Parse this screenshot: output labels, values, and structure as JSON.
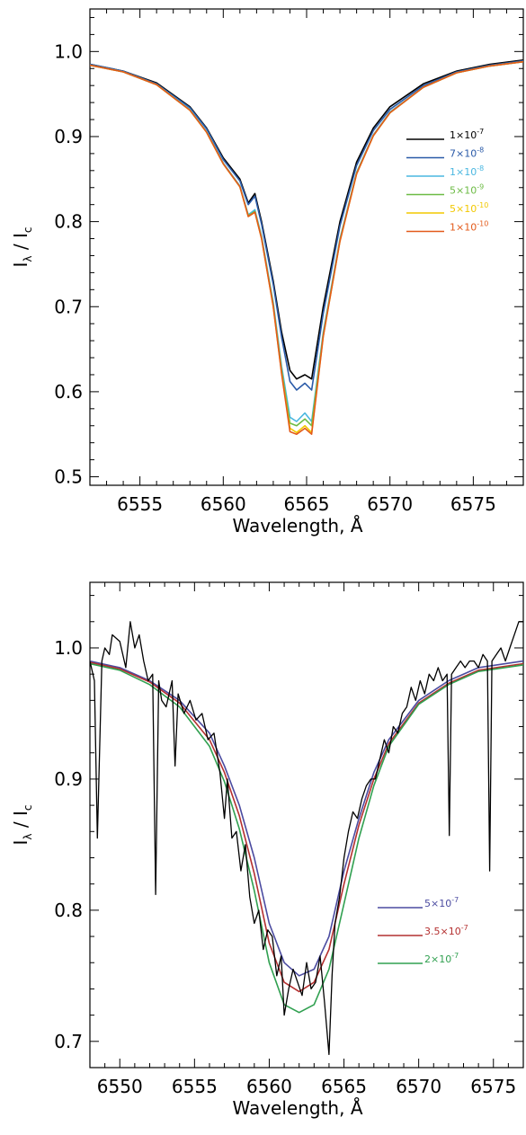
{
  "chart_data": [
    {
      "type": "line",
      "xlabel": "Wavelength, Å",
      "ylabel": "I_λ / I_c",
      "xlim": [
        6552,
        6578
      ],
      "ylim": [
        0.49,
        1.05
      ],
      "xticks": [
        6555,
        6560,
        6565,
        6570,
        6575
      ],
      "yticks": [
        0.5,
        0.6,
        0.7,
        0.8,
        0.9,
        1.0
      ],
      "ytick_labels": [
        "0.5",
        "0.6",
        "0.7",
        "0.8",
        "0.9",
        "1.0"
      ],
      "legend_placement": "right",
      "series": [
        {
          "name": "1×10⁻⁷",
          "color": "#000000",
          "x": [
            6552,
            6554,
            6556,
            6558,
            6559,
            6560,
            6561,
            6561.5,
            6561.9,
            6562.3,
            6563,
            6563.5,
            6564,
            6564.4,
            6564.9,
            6565.3,
            6566,
            6567,
            6568,
            6569,
            6570,
            6572,
            6574,
            6576,
            6578
          ],
          "y": [
            0.985,
            0.977,
            0.963,
            0.935,
            0.91,
            0.875,
            0.85,
            0.822,
            0.833,
            0.8,
            0.73,
            0.67,
            0.625,
            0.615,
            0.62,
            0.615,
            0.7,
            0.8,
            0.87,
            0.91,
            0.935,
            0.962,
            0.977,
            0.985,
            0.99
          ]
        },
        {
          "name": "7×10⁻⁸",
          "color": "#2a5aa8",
          "x": [
            6552,
            6554,
            6556,
            6558,
            6559,
            6560,
            6561,
            6561.5,
            6561.9,
            6562.3,
            6563,
            6563.5,
            6564,
            6564.4,
            6564.9,
            6565.3,
            6566,
            6567,
            6568,
            6569,
            6570,
            6572,
            6574,
            6576,
            6578
          ],
          "y": [
            0.985,
            0.977,
            0.962,
            0.934,
            0.909,
            0.873,
            0.848,
            0.82,
            0.83,
            0.797,
            0.726,
            0.664,
            0.612,
            0.602,
            0.61,
            0.602,
            0.692,
            0.795,
            0.866,
            0.907,
            0.932,
            0.96,
            0.976,
            0.984,
            0.989
          ]
        },
        {
          "name": "1×10⁻⁸",
          "color": "#4ab7e0",
          "x": [
            6552,
            6554,
            6556,
            6558,
            6559,
            6560,
            6561,
            6561.5,
            6561.9,
            6562.3,
            6563,
            6563.5,
            6564,
            6564.4,
            6564.9,
            6565.3,
            6566,
            6567,
            6568,
            6569,
            6570,
            6572,
            6574,
            6576,
            6578
          ],
          "y": [
            0.984,
            0.976,
            0.961,
            0.932,
            0.906,
            0.869,
            0.842,
            0.808,
            0.814,
            0.783,
            0.705,
            0.63,
            0.57,
            0.565,
            0.575,
            0.565,
            0.67,
            0.78,
            0.858,
            0.902,
            0.929,
            0.958,
            0.975,
            0.983,
            0.988
          ]
        },
        {
          "name": "5×10⁻⁹",
          "color": "#6dbb45",
          "x": [
            6552,
            6554,
            6556,
            6558,
            6559,
            6560,
            6561,
            6561.5,
            6561.9,
            6562.3,
            6563,
            6563.5,
            6564,
            6564.4,
            6564.9,
            6565.3,
            6566,
            6567,
            6568,
            6569,
            6570,
            6572,
            6574,
            6576,
            6578
          ],
          "y": [
            0.984,
            0.976,
            0.961,
            0.931,
            0.905,
            0.868,
            0.841,
            0.807,
            0.812,
            0.781,
            0.702,
            0.625,
            0.563,
            0.56,
            0.568,
            0.56,
            0.667,
            0.778,
            0.857,
            0.901,
            0.928,
            0.958,
            0.975,
            0.983,
            0.988
          ]
        },
        {
          "name": "5×10⁻¹⁰",
          "color": "#f2c800",
          "x": [
            6552,
            6554,
            6556,
            6558,
            6559,
            6560,
            6561,
            6561.5,
            6561.9,
            6562.3,
            6563,
            6563.5,
            6564,
            6564.4,
            6564.9,
            6565.3,
            6566,
            6567,
            6568,
            6569,
            6570,
            6572,
            6574,
            6576,
            6578
          ],
          "y": [
            0.984,
            0.976,
            0.961,
            0.931,
            0.905,
            0.868,
            0.841,
            0.806,
            0.811,
            0.78,
            0.7,
            0.622,
            0.557,
            0.552,
            0.56,
            0.552,
            0.665,
            0.777,
            0.856,
            0.901,
            0.928,
            0.958,
            0.975,
            0.983,
            0.988
          ]
        },
        {
          "name": "1×10⁻¹⁰",
          "color": "#e35a1a",
          "x": [
            6552,
            6554,
            6556,
            6558,
            6559,
            6560,
            6561,
            6561.5,
            6561.9,
            6562.3,
            6563,
            6563.5,
            6564,
            6564.4,
            6564.9,
            6565.3,
            6566,
            6567,
            6568,
            6569,
            6570,
            6572,
            6574,
            6576,
            6578
          ],
          "y": [
            0.984,
            0.976,
            0.961,
            0.931,
            0.905,
            0.868,
            0.841,
            0.806,
            0.811,
            0.78,
            0.7,
            0.621,
            0.553,
            0.55,
            0.557,
            0.55,
            0.665,
            0.777,
            0.856,
            0.901,
            0.928,
            0.958,
            0.975,
            0.983,
            0.988
          ]
        }
      ]
    },
    {
      "type": "line",
      "xlabel": "Wavelength, Å",
      "ylabel": "I_λ / I_c",
      "xlim": [
        6548,
        6577
      ],
      "ylim": [
        0.68,
        1.05
      ],
      "xticks": [
        6550,
        6555,
        6560,
        6565,
        6570,
        6575
      ],
      "yticks": [
        0.7,
        0.8,
        0.9,
        1.0
      ],
      "ytick_labels": [
        "0.7",
        "0.8",
        "0.9",
        "1.0"
      ],
      "legend_placement": "bottom-right",
      "series": [
        {
          "name": "5×10⁻⁷",
          "color": "#4b4ba0",
          "x": [
            6548,
            6550,
            6552,
            6554,
            6556,
            6557,
            6558,
            6559,
            6560,
            6561,
            6562,
            6563,
            6564,
            6565,
            6566,
            6567,
            6568,
            6570,
            6572,
            6574,
            6577
          ],
          "y": [
            0.99,
            0.985,
            0.975,
            0.96,
            0.935,
            0.91,
            0.88,
            0.84,
            0.79,
            0.76,
            0.75,
            0.755,
            0.78,
            0.83,
            0.87,
            0.905,
            0.93,
            0.96,
            0.975,
            0.985,
            0.99
          ]
        },
        {
          "name": "3.5×10⁻⁷",
          "color": "#b43030",
          "x": [
            6548,
            6550,
            6552,
            6554,
            6556,
            6557,
            6558,
            6559,
            6560,
            6561,
            6562,
            6563,
            6564,
            6565,
            6566,
            6567,
            6568,
            6570,
            6572,
            6574,
            6577
          ],
          "y": [
            0.989,
            0.984,
            0.974,
            0.958,
            0.93,
            0.905,
            0.872,
            0.828,
            0.775,
            0.745,
            0.738,
            0.745,
            0.77,
            0.82,
            0.865,
            0.9,
            0.927,
            0.958,
            0.973,
            0.983,
            0.988
          ]
        },
        {
          "name": "2×10⁻⁷",
          "color": "#30a050",
          "x": [
            6548,
            6550,
            6552,
            6554,
            6556,
            6557,
            6558,
            6559,
            6560,
            6561,
            6562,
            6563,
            6564,
            6565,
            6566,
            6567,
            6568,
            6570,
            6572,
            6574,
            6577
          ],
          "y": [
            0.988,
            0.983,
            0.972,
            0.955,
            0.925,
            0.898,
            0.862,
            0.815,
            0.76,
            0.728,
            0.722,
            0.728,
            0.755,
            0.805,
            0.855,
            0.895,
            0.925,
            0.957,
            0.972,
            0.982,
            0.987
          ]
        },
        {
          "name": "",
          "color": "#000000",
          "x": [
            6548,
            6548.3,
            6548.5,
            6548.8,
            6549,
            6549.3,
            6549.5,
            6550,
            6550.4,
            6550.7,
            6551,
            6551.3,
            6551.6,
            6551.9,
            6552.2,
            6552.4,
            6552.6,
            6552.8,
            6553.1,
            6553.5,
            6553.7,
            6553.9,
            6554.3,
            6554.7,
            6555.1,
            6555.5,
            6555.9,
            6556.3,
            6556.7,
            6557.0,
            6557.2,
            6557.5,
            6557.8,
            6558.1,
            6558.4,
            6558.7,
            6559.0,
            6559.3,
            6559.6,
            6559.9,
            6560.2,
            6560.5,
            6560.8,
            6561.0,
            6561.3,
            6561.6,
            6561.9,
            6562.2,
            6562.5,
            6562.8,
            6563.1,
            6563.4,
            6563.7,
            6564.0,
            6564.2,
            6564.4,
            6564.7,
            6565.0,
            6565.3,
            6565.6,
            6565.9,
            6566.2,
            6566.5,
            6566.8,
            6567.1,
            6567.4,
            6567.7,
            6568.0,
            6568.3,
            6568.6,
            6568.9,
            6569.2,
            6569.5,
            6569.8,
            6570.1,
            6570.4,
            6570.7,
            6571.0,
            6571.3,
            6571.6,
            6571.9,
            6572.05,
            6572.2,
            6572.5,
            6572.8,
            6573.1,
            6573.4,
            6573.7,
            6574.0,
            6574.3,
            6574.6,
            6574.75,
            6574.9,
            6575.2,
            6575.5,
            6575.8,
            6576.1,
            6576.4,
            6576.7,
            6577.0
          ],
          "y": [
            0.99,
            0.975,
            0.855,
            0.99,
            1.0,
            0.995,
            1.01,
            1.005,
            0.985,
            1.02,
            1.0,
            1.01,
            0.99,
            0.975,
            0.98,
            0.812,
            0.975,
            0.96,
            0.955,
            0.975,
            0.91,
            0.965,
            0.95,
            0.96,
            0.945,
            0.95,
            0.93,
            0.935,
            0.905,
            0.87,
            0.9,
            0.855,
            0.86,
            0.83,
            0.85,
            0.81,
            0.79,
            0.8,
            0.77,
            0.785,
            0.78,
            0.75,
            0.765,
            0.72,
            0.74,
            0.755,
            0.745,
            0.735,
            0.76,
            0.74,
            0.745,
            0.765,
            0.73,
            0.69,
            0.75,
            0.79,
            0.81,
            0.84,
            0.86,
            0.875,
            0.87,
            0.885,
            0.895,
            0.9,
            0.9,
            0.915,
            0.93,
            0.92,
            0.94,
            0.935,
            0.95,
            0.955,
            0.97,
            0.96,
            0.975,
            0.965,
            0.98,
            0.975,
            0.985,
            0.975,
            0.98,
            0.857,
            0.98,
            0.985,
            0.99,
            0.985,
            0.99,
            0.99,
            0.985,
            0.995,
            0.99,
            0.83,
            0.99,
            0.995,
            1.0,
            0.99,
            1.0,
            1.01,
            1.02,
            1.02
          ]
        }
      ]
    }
  ]
}
